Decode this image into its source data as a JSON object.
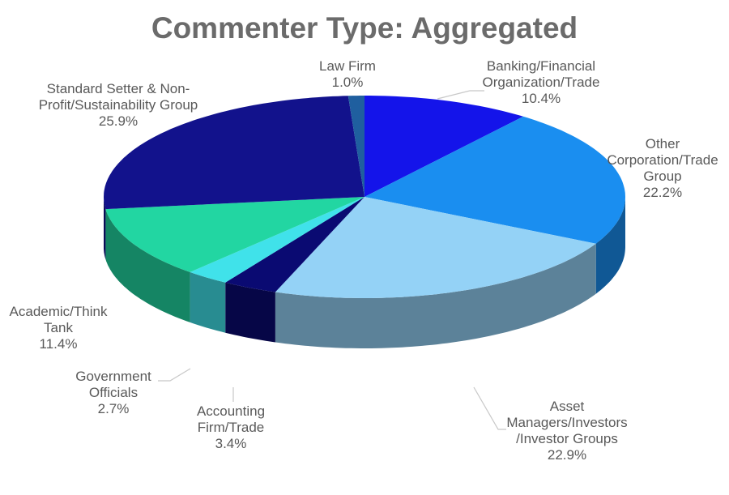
{
  "chart_data": {
    "type": "pie3d",
    "title": "Commenter Type: Aggregated",
    "categories": [
      "Banking/Financial\nOrganization/Trade",
      "Other\nCorporation/Trade\nGroup",
      "Asset\nManagers/Investors\n/Investor Groups",
      "Accounting\nFirm/Trade",
      "Government\nOfficials",
      "Academic/Think\nTank",
      "Standard Setter & Non-\nProfit/Sustainability Group",
      "Law Firm"
    ],
    "values": [
      10.4,
      22.2,
      22.9,
      3.4,
      2.7,
      11.4,
      25.9,
      1.0
    ],
    "value_labels": [
      "10.4%",
      "22.2%",
      "22.9%",
      "3.4%",
      "2.7%",
      "11.4%",
      "25.9%",
      "1.0%"
    ],
    "colors": [
      "#1414ea",
      "#1a8ef0",
      "#94d2f6",
      "#0a0a72",
      "#40e2ea",
      "#22d6a2",
      "#12128c",
      "#1f5f9f"
    ]
  }
}
